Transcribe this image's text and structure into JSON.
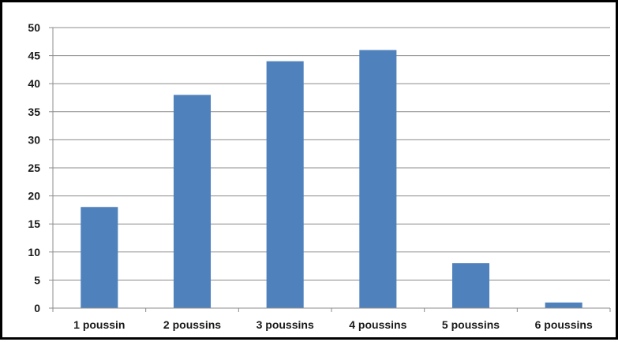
{
  "chart_data": {
    "type": "bar",
    "title": "",
    "xlabel": "",
    "ylabel": "",
    "categories": [
      "1 poussin",
      "2 poussins",
      "3 poussins",
      "4 poussins",
      "5 poussins",
      "6 poussins"
    ],
    "values": [
      18,
      38,
      44,
      46,
      8,
      1
    ],
    "ylim": [
      0,
      50
    ],
    "yticks": [
      0,
      5,
      10,
      15,
      20,
      25,
      30,
      35,
      40,
      45,
      50
    ],
    "grid": true,
    "legend": "none",
    "bar_color": "#4F81BD",
    "grid_color": "#8C8C8C"
  }
}
